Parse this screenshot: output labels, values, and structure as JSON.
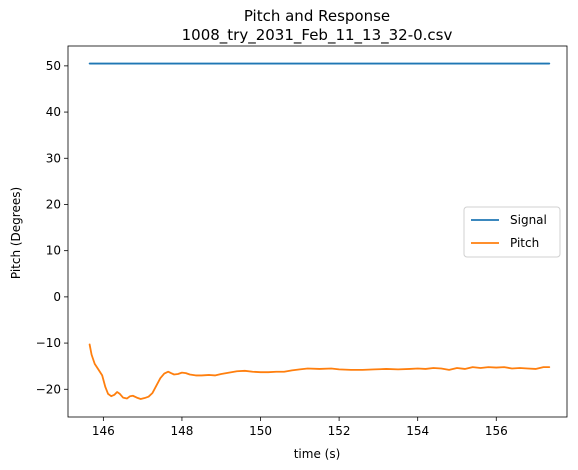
{
  "chart_data": {
    "type": "line",
    "title": "Pitch and Response",
    "subtitle": "1008_try_2031_Feb_11_13_32-0.csv",
    "xlabel": "time (s)",
    "ylabel": "Pitch (Degrees)",
    "xlim": [
      145.1,
      157.8
    ],
    "ylim": [
      -26,
      54.3
    ],
    "xticks": [
      146,
      148,
      150,
      152,
      154,
      156
    ],
    "yticks": [
      -20,
      -10,
      0,
      10,
      20,
      30,
      40,
      50
    ],
    "xtick_labels": [
      "146",
      "148",
      "150",
      "152",
      "154",
      "156"
    ],
    "ytick_labels": [
      "−20",
      "−10",
      "0",
      "10",
      "20",
      "30",
      "40",
      "50"
    ],
    "grid": false,
    "legend_position": "center-right",
    "series": [
      {
        "name": "Signal",
        "color": "#1f77b4",
        "x": [
          145.65,
          157.35
        ],
        "y": [
          50.5,
          50.5
        ]
      },
      {
        "name": "Pitch",
        "color": "#ff7f0e",
        "x": [
          145.65,
          145.7,
          145.78,
          145.88,
          145.97,
          146.05,
          146.12,
          146.2,
          146.28,
          146.35,
          146.42,
          146.5,
          146.6,
          146.68,
          146.75,
          146.85,
          146.95,
          147.05,
          147.15,
          147.25,
          147.35,
          147.45,
          147.55,
          147.65,
          147.72,
          147.8,
          147.9,
          148.0,
          148.1,
          148.2,
          148.35,
          148.5,
          148.7,
          148.85,
          149.0,
          149.2,
          149.4,
          149.6,
          149.8,
          150.0,
          150.2,
          150.4,
          150.6,
          150.8,
          151.0,
          151.2,
          151.5,
          151.8,
          152.0,
          152.3,
          152.6,
          152.9,
          153.2,
          153.5,
          153.8,
          154.0,
          154.2,
          154.4,
          154.6,
          154.8,
          155.0,
          155.2,
          155.4,
          155.6,
          155.8,
          156.0,
          156.2,
          156.4,
          156.6,
          156.8,
          157.0,
          157.2,
          157.35
        ],
        "y": [
          -10.3,
          -12.5,
          -14.5,
          -15.8,
          -17.0,
          -19.5,
          -21.0,
          -21.5,
          -21.2,
          -20.6,
          -21.0,
          -21.8,
          -22.0,
          -21.5,
          -21.4,
          -21.8,
          -22.1,
          -21.9,
          -21.6,
          -20.8,
          -19.2,
          -17.6,
          -16.6,
          -16.2,
          -16.5,
          -16.8,
          -16.7,
          -16.4,
          -16.5,
          -16.8,
          -17.0,
          -17.0,
          -16.9,
          -17.0,
          -16.7,
          -16.4,
          -16.1,
          -16.0,
          -16.2,
          -16.3,
          -16.3,
          -16.2,
          -16.2,
          -15.9,
          -15.7,
          -15.5,
          -15.6,
          -15.5,
          -15.7,
          -15.8,
          -15.8,
          -15.7,
          -15.6,
          -15.7,
          -15.6,
          -15.5,
          -15.6,
          -15.4,
          -15.5,
          -15.8,
          -15.4,
          -15.6,
          -15.2,
          -15.4,
          -15.2,
          -15.3,
          -15.2,
          -15.5,
          -15.4,
          -15.5,
          -15.6,
          -15.2,
          -15.2
        ]
      }
    ]
  }
}
